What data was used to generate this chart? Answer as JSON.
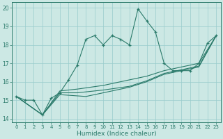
{
  "xlabel": "Humidex (Indice chaleur)",
  "bg_color": "#cce8e4",
  "grid_color": "#99cccc",
  "line_color": "#2a7a6a",
  "xlim": [
    -0.5,
    23.5
  ],
  "ylim": [
    13.8,
    20.3
  ],
  "xticks": [
    0,
    1,
    2,
    3,
    4,
    5,
    6,
    7,
    8,
    9,
    10,
    11,
    12,
    13,
    14,
    15,
    16,
    17,
    18,
    19,
    20,
    21,
    22,
    23
  ],
  "yticks": [
    14,
    15,
    16,
    17,
    18,
    19,
    20
  ],
  "series1_x": [
    0,
    1,
    2,
    3,
    4,
    5,
    6,
    7,
    8,
    9,
    10,
    11,
    12,
    13,
    14,
    15,
    16,
    17,
    18,
    19,
    20,
    21,
    22,
    23
  ],
  "series1_y": [
    15.2,
    15.0,
    15.0,
    14.2,
    15.1,
    15.4,
    16.1,
    16.9,
    18.3,
    18.5,
    18.0,
    18.5,
    18.3,
    18.0,
    19.95,
    19.3,
    18.7,
    17.0,
    16.6,
    16.6,
    16.6,
    17.0,
    18.1,
    18.5
  ],
  "series2_x": [
    0,
    3,
    5,
    8,
    10,
    13,
    15,
    17,
    19,
    21,
    23
  ],
  "series2_y": [
    15.2,
    14.2,
    15.3,
    15.2,
    15.4,
    15.7,
    16.0,
    16.4,
    16.6,
    16.8,
    18.5
  ],
  "series3_x": [
    0,
    3,
    5,
    7,
    10,
    13,
    15,
    17,
    19,
    21,
    23
  ],
  "series3_y": [
    15.2,
    14.2,
    15.4,
    15.4,
    15.55,
    15.75,
    16.05,
    16.45,
    16.65,
    16.85,
    18.5
  ],
  "series4_x": [
    0,
    3,
    5,
    7,
    10,
    13,
    15,
    17,
    19,
    21,
    23
  ],
  "series4_y": [
    15.2,
    14.2,
    15.5,
    15.6,
    15.8,
    16.1,
    16.3,
    16.6,
    16.8,
    17.0,
    18.5
  ]
}
